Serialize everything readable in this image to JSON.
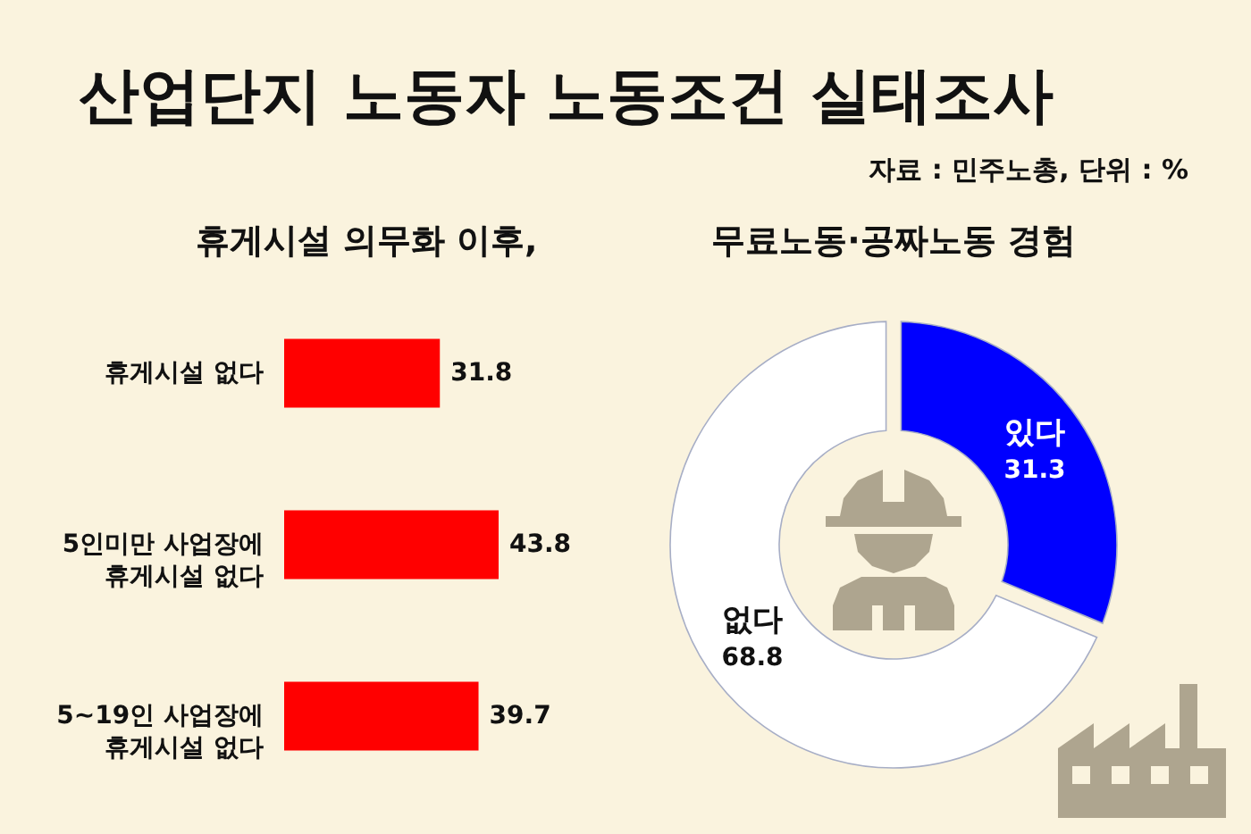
{
  "chart_data": [
    {
      "type": "other",
      "title": "산업단지 노동자 노동조건 실태조사",
      "annotations": [
        "자료 : 민주노총, 단위 : %"
      ]
    },
    {
      "type": "bar",
      "orientation": "horizontal",
      "title": "휴게시설 의무화 이후,",
      "categories": [
        "휴게시설 없다",
        "5인미만 사업장에 휴게시설 없다",
        "5~19인 사업장에 휴게시설 없다"
      ],
      "values": [
        31.8,
        43.8,
        39.7
      ],
      "color": "#ff0000",
      "data_labels": true
    },
    {
      "type": "donut",
      "title": "무료노동·공짜노동 경험",
      "categories": [
        "있다",
        "없다"
      ],
      "values": [
        31.3,
        68.8
      ],
      "colors": [
        "#0000ff",
        "#ffffff"
      ],
      "data_labels": true,
      "legend": false
    }
  ]
}
